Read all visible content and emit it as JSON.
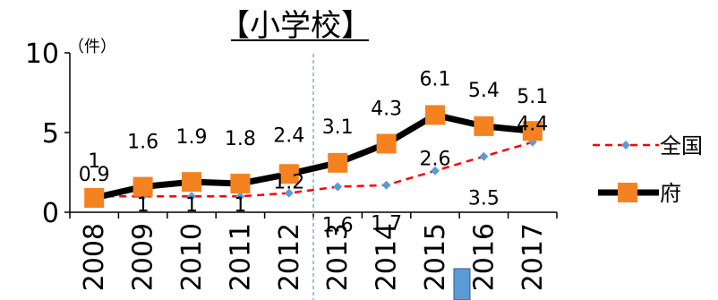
{
  "chart_data": {
    "type": "line",
    "title": "【小学校】",
    "ylabel_unit": "（件）",
    "ylim": [
      0,
      10
    ],
    "yticks": [
      0,
      5,
      10
    ],
    "x": [
      "2008",
      "2009",
      "2010",
      "2011",
      "2012",
      "2013",
      "2014",
      "2015",
      "2016",
      "2017"
    ],
    "series": [
      {
        "name": "全国",
        "color": "#ff0000",
        "marker_color": "#5b9bd5",
        "style": "dashed",
        "values": [
          1,
          1,
          1,
          1,
          1.2,
          1.6,
          1.7,
          2.6,
          3.5,
          4.4
        ],
        "labels": [
          "1",
          "1",
          "1",
          "1",
          "1.2",
          "1.6",
          "1.7",
          "2.6",
          "3.5",
          "4.4"
        ]
      },
      {
        "name": "府",
        "color": "#000000",
        "marker_color": "#f58220",
        "style": "solid",
        "values": [
          0.9,
          1.6,
          1.9,
          1.8,
          2.4,
          3.1,
          4.3,
          6.1,
          5.4,
          5.1
        ],
        "labels": [
          "0.9",
          "1.6",
          "1.9",
          "1.8",
          "2.4",
          "3.1",
          "4.3",
          "6.1",
          "5.4",
          "5.1"
        ]
      }
    ],
    "vline_after_category": "2012",
    "legend_position": "right"
  }
}
